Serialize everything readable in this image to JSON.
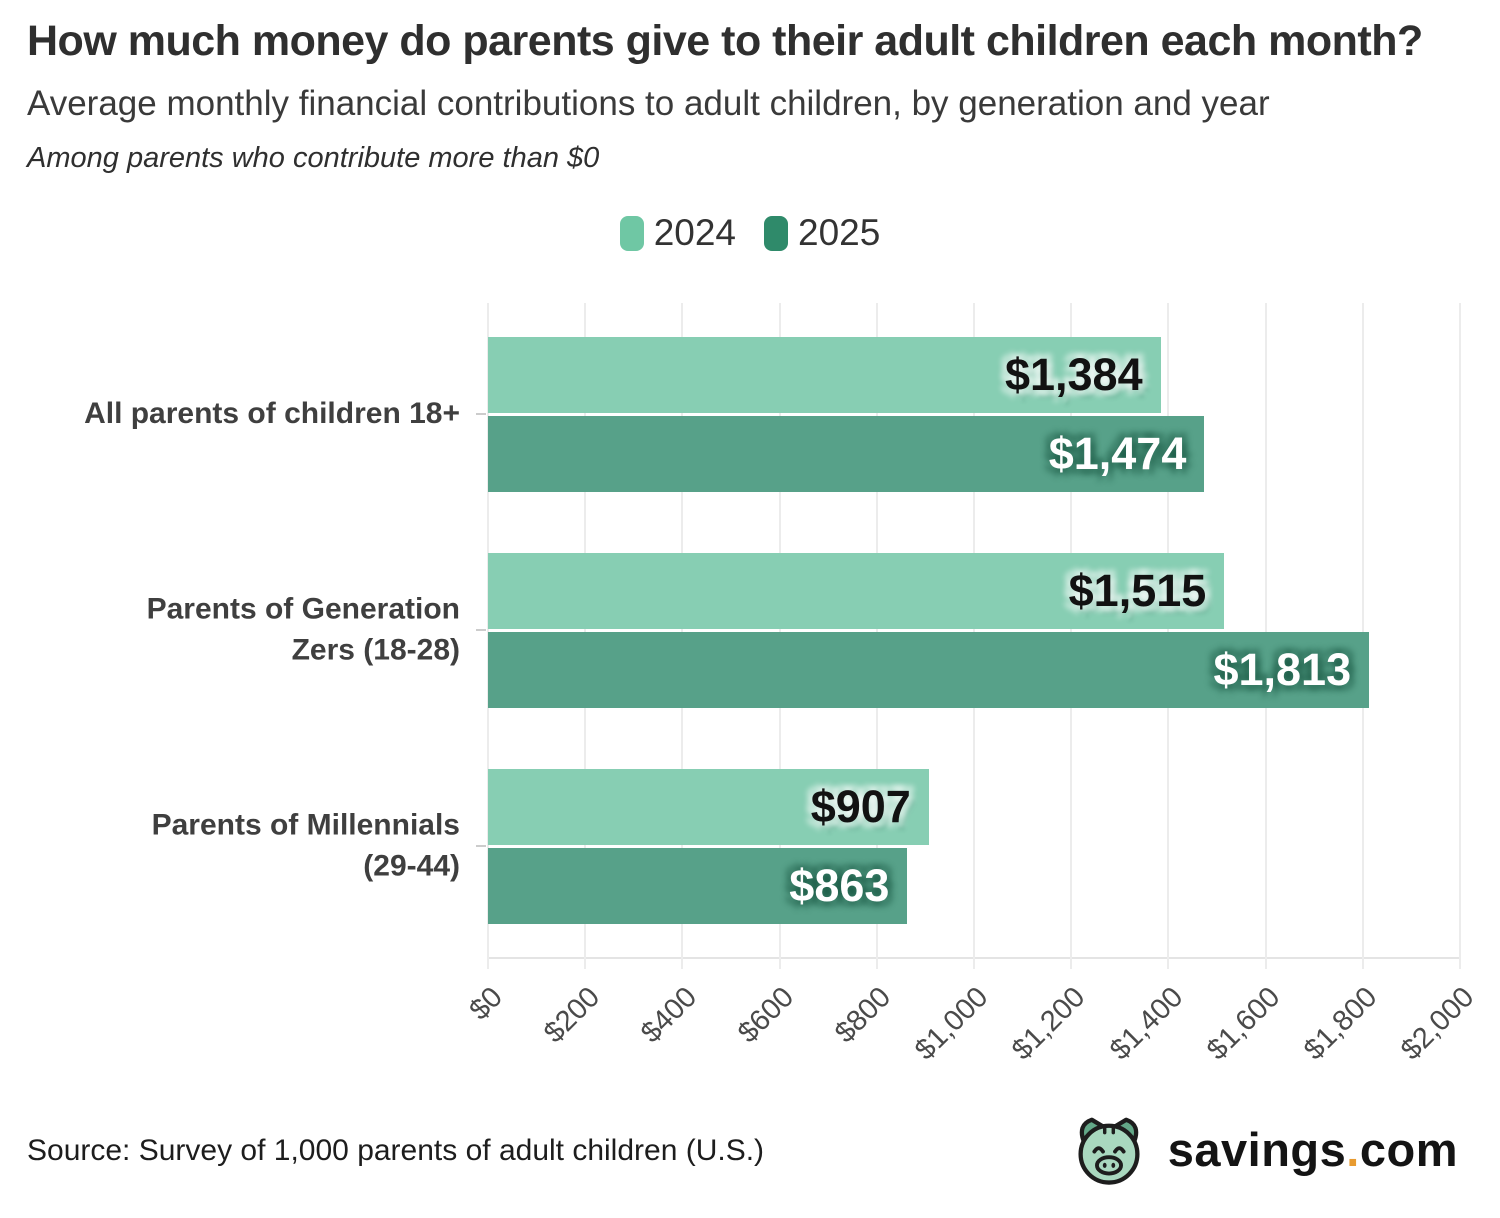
{
  "header": {
    "title": "How much money do parents give to their adult children each month?",
    "subtitle": "Average monthly financial contributions to adult children, by generation and year",
    "note": "Among parents who contribute more than $0"
  },
  "legend": {
    "items": [
      {
        "label": "2024",
        "color": "#6fc7a4"
      },
      {
        "label": "2025",
        "color": "#2f8a6a"
      }
    ]
  },
  "chart_data": {
    "type": "bar",
    "orientation": "horizontal",
    "title": "How much money do parents give to their adult children each month?",
    "subtitle": "Average monthly financial contributions to adult children, by generation and year",
    "annotation": "Among parents who contribute more than $0",
    "categories": [
      "All parents of children 18+",
      "Parents of Generation Zers (18-28)",
      "Parents of Millennials (29-44)"
    ],
    "categories_display": [
      "All parents of children 18+",
      "Parents of Generation\nZers (18-28)",
      "Parents of Millennials\n(29-44)"
    ],
    "series": [
      {
        "name": "2024",
        "bar_color": "#87ceb3",
        "legend_color": "#6fc7a4",
        "values": [
          1384,
          1515,
          907
        ],
        "labels": [
          "$1,384",
          "$1,515",
          "$907"
        ],
        "label_style": "light"
      },
      {
        "name": "2025",
        "bar_color": "#57a189",
        "legend_color": "#2f8a6a",
        "values": [
          1474,
          1813,
          863
        ],
        "labels": [
          "$1,474",
          "$1,813",
          "$863"
        ],
        "label_style": "dark"
      }
    ],
    "xlabel": "",
    "ylabel": "",
    "xlim": [
      0,
      2000
    ],
    "x_ticks": [
      {
        "value": 0,
        "label": "$0"
      },
      {
        "value": 200,
        "label": "$200"
      },
      {
        "value": 400,
        "label": "$400"
      },
      {
        "value": 600,
        "label": "$600"
      },
      {
        "value": 800,
        "label": "$800"
      },
      {
        "value": 1000,
        "label": "$1,000"
      },
      {
        "value": 1200,
        "label": "$1,200"
      },
      {
        "value": 1400,
        "label": "$1,400"
      },
      {
        "value": 1600,
        "label": "$1,600"
      },
      {
        "value": 1800,
        "label": "$1,800"
      },
      {
        "value": 2000,
        "label": "$2,000"
      }
    ],
    "grid": true,
    "legend_position": "top-center"
  },
  "footer": {
    "source": "Source: Survey of 1,000 parents of adult children (U.S.)"
  },
  "brand": {
    "name": "savings",
    "dot": ".",
    "tld": "com",
    "dot_color": "#e89b30",
    "pig_face_color": "#a9d8bf",
    "pig_ear_color": "#63a888",
    "pig_outline_color": "#1d1d1d"
  }
}
